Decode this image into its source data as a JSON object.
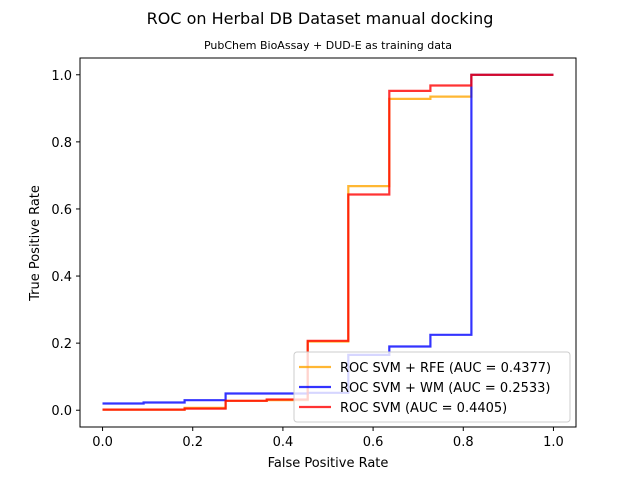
{
  "chart_data": {
    "type": "line",
    "title": "ROC on Herbal DB Dataset manual docking",
    "subtitle": "PubChem BioAssay + DUD-E as training data",
    "xlabel": "False Positive Rate",
    "ylabel": "True Positive Rate",
    "xlim": [
      -0.05,
      1.05
    ],
    "ylim": [
      -0.05,
      1.05
    ],
    "xticks": [
      "0.0",
      "0.2",
      "0.4",
      "0.6",
      "0.8",
      "1.0"
    ],
    "yticks": [
      "0.0",
      "0.2",
      "0.4",
      "0.6",
      "0.8",
      "1.0"
    ],
    "grid": false,
    "legend_position": "lower-right",
    "series": [
      {
        "name": "ROC SVM + RFE (AUC = 0.4377)",
        "color": "#ffa500",
        "x": [
          0.0,
          0.182,
          0.182,
          0.273,
          0.273,
          0.364,
          0.364,
          0.455,
          0.455,
          0.545,
          0.545,
          0.636,
          0.636,
          0.727,
          0.727,
          0.818,
          0.818,
          1.0
        ],
        "y": [
          0.002,
          0.002,
          0.007,
          0.007,
          0.028,
          0.028,
          0.03,
          0.03,
          0.205,
          0.205,
          0.668,
          0.668,
          0.928,
          0.928,
          0.935,
          0.935,
          1.0,
          1.0
        ]
      },
      {
        "name": "ROC SVM + WM (AUC = 0.2533)",
        "color": "#0000ff",
        "x": [
          0.0,
          0.091,
          0.091,
          0.182,
          0.182,
          0.273,
          0.273,
          0.455,
          0.455,
          0.545,
          0.545,
          0.636,
          0.636,
          0.727,
          0.727,
          0.818,
          0.818,
          1.0
        ],
        "y": [
          0.02,
          0.02,
          0.023,
          0.023,
          0.03,
          0.03,
          0.05,
          0.05,
          0.052,
          0.052,
          0.165,
          0.165,
          0.19,
          0.19,
          0.225,
          0.225,
          1.0,
          1.0
        ]
      },
      {
        "name": "ROC SVM (AUC = 0.4405)",
        "color": "#ff0000",
        "x": [
          0.0,
          0.182,
          0.182,
          0.273,
          0.273,
          0.364,
          0.364,
          0.455,
          0.455,
          0.545,
          0.545,
          0.636,
          0.636,
          0.727,
          0.727,
          0.818,
          0.818,
          1.0
        ],
        "y": [
          0.002,
          0.002,
          0.005,
          0.005,
          0.028,
          0.028,
          0.032,
          0.032,
          0.207,
          0.207,
          0.643,
          0.643,
          0.952,
          0.952,
          0.968,
          0.968,
          1.0,
          1.0
        ]
      }
    ]
  }
}
